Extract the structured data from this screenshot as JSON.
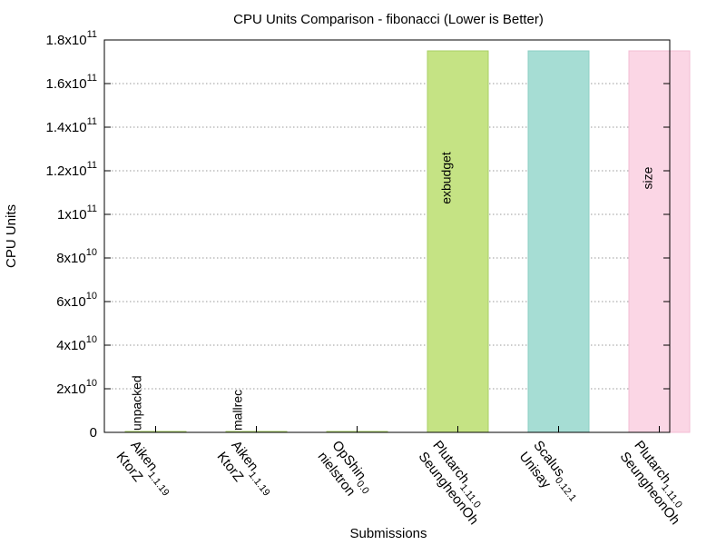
{
  "chart_data": {
    "type": "bar",
    "title": "CPU Units Comparison - fibonacci (Lower is Better)",
    "xlabel": "Submissions",
    "ylabel": "CPU Units",
    "ylim": [
      0,
      180000000000
    ],
    "y_ticks": [
      {
        "value": 0,
        "mantissa": "0",
        "exp": ""
      },
      {
        "value": 20000000000,
        "mantissa": "2x10",
        "exp": "10"
      },
      {
        "value": 40000000000,
        "mantissa": "4x10",
        "exp": "10"
      },
      {
        "value": 60000000000,
        "mantissa": "6x10",
        "exp": "10"
      },
      {
        "value": 80000000000,
        "mantissa": "8x10",
        "exp": "10"
      },
      {
        "value": 100000000000,
        "mantissa": "1x10",
        "exp": "11"
      },
      {
        "value": 120000000000,
        "mantissa": "1.2x10",
        "exp": "11"
      },
      {
        "value": 140000000000,
        "mantissa": "1.4x10",
        "exp": "11"
      },
      {
        "value": 160000000000,
        "mantissa": "1.6x10",
        "exp": "11"
      },
      {
        "value": 180000000000,
        "mantissa": "1.8x10",
        "exp": "11"
      }
    ],
    "grid": true,
    "categories": [
      {
        "line1_main": "Aiken",
        "line1_sub": "1.1.19",
        "line2": "KtorZ"
      },
      {
        "line1_main": "Aiken",
        "line1_sub": "1.1.19",
        "line2": "KtorZ"
      },
      {
        "line1_main": "OpShin",
        "line1_sub": "0.0",
        "line2": "nielstron"
      },
      {
        "line1_main": "Plutarch",
        "line1_sub": "1.11.0",
        "line2": "SeungheonOh"
      },
      {
        "line1_main": "Scalus",
        "line1_sub": "0.12.1",
        "line2": "Unisay"
      },
      {
        "line1_main": "Plutarch",
        "line1_sub": "1.11.0",
        "line2": "SeungheonOh"
      }
    ],
    "values": [
      0,
      0,
      0,
      175000000000,
      175000000000,
      175000000000
    ],
    "bar_labels": [
      "unpacked",
      "mallrec",
      "",
      "exbudget",
      "",
      "size"
    ],
    "colors": [
      "#c5e384",
      "#c5e384",
      "#c5e384",
      "#c5e384",
      "#a6ddd4",
      "#fbd6e5"
    ],
    "edge_colors": [
      "#a9cf66",
      "#a9cf66",
      "#a9cf66",
      "#a9cf66",
      "#8ccfc4",
      "#f3bdd4"
    ],
    "grid_color": "#999999"
  }
}
